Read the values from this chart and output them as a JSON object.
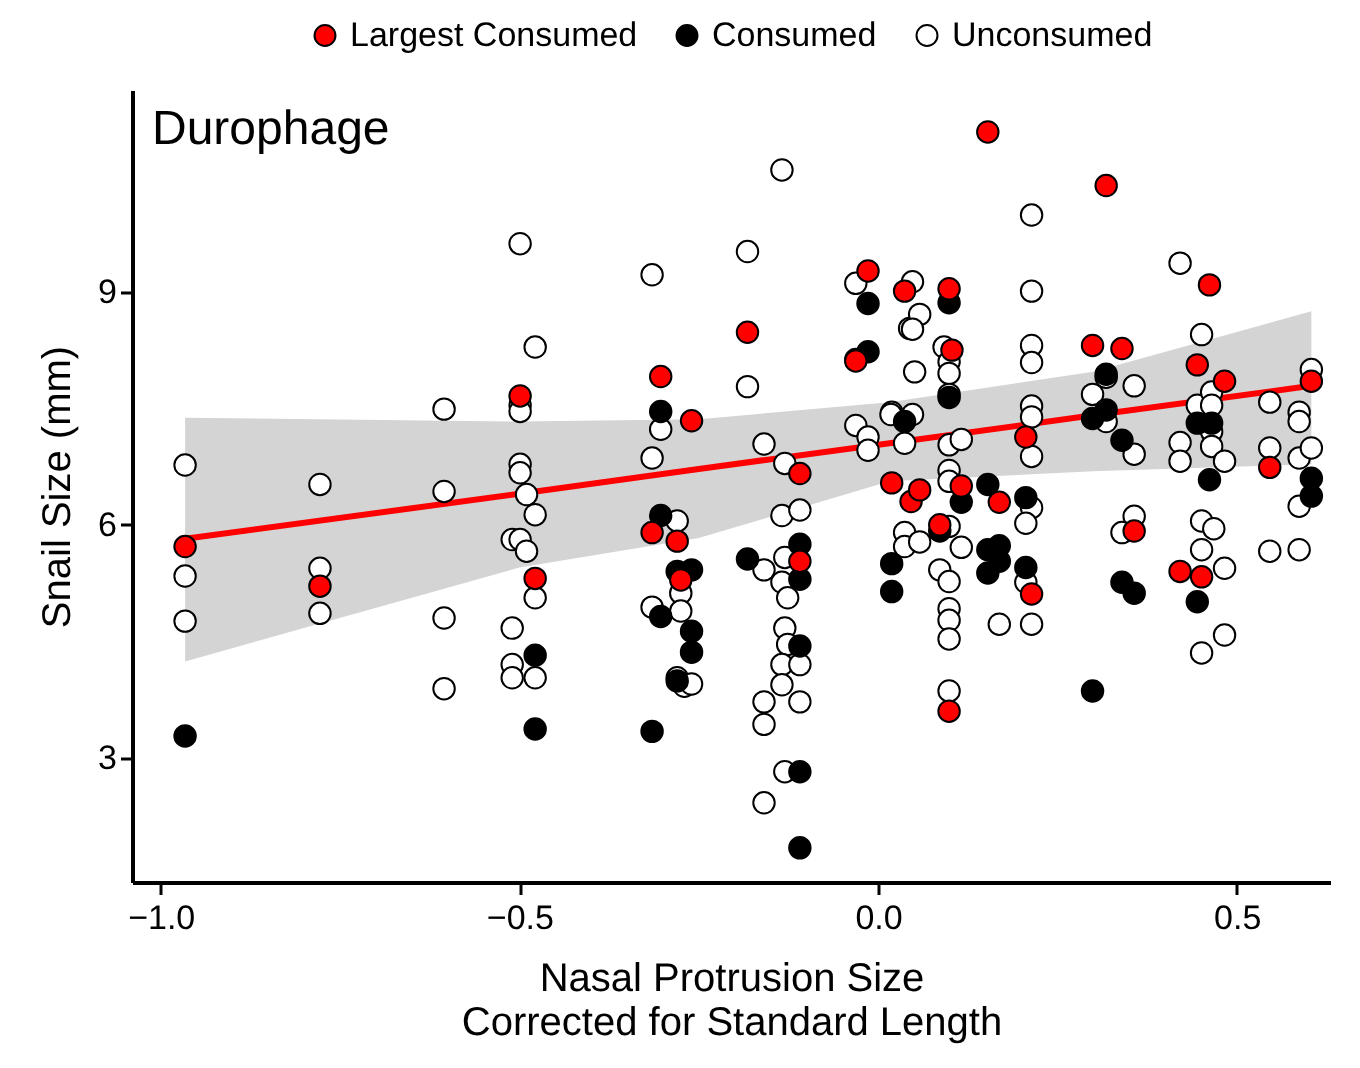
{
  "chart_data": {
    "type": "scatter",
    "title": "Durophage",
    "xlabel": "Nasal Protrusion Size\nCorrected for Standard Length",
    "ylabel": "Snail Size (mm)",
    "xlim": [
      -1.04,
      0.63
    ],
    "ylim": [
      1.4,
      11.6
    ],
    "xticks": [
      {
        "value": -1.0,
        "label": "−1.0"
      },
      {
        "value": -0.5,
        "label": "−0.5"
      },
      {
        "value": 0.0,
        "label": "0.0"
      },
      {
        "value": 0.5,
        "label": "0.5"
      }
    ],
    "yticks": [
      3,
      6,
      9
    ],
    "legend": "top",
    "marker": "circle",
    "series": [
      {
        "name": "Largest Consumed",
        "color": "#ff0000",
        "x": [
          -0.966,
          -0.778,
          -0.499,
          -0.478,
          -0.303,
          -0.26,
          -0.315,
          -0.28,
          -0.275,
          -0.182,
          -0.109,
          -0.109,
          -0.014,
          -0.031,
          0.037,
          0.019,
          0.046,
          0.153,
          0.318,
          0.462,
          0.099,
          0.103,
          0.299,
          0.34,
          0.445,
          0.483,
          0.116,
          0.206,
          0.357,
          0.058,
          0.086,
          0.169,
          0.214,
          0.421,
          0.451,
          0.546,
          0.604,
          0.099
        ],
        "values": [
          5.72,
          5.21,
          7.66,
          5.31,
          7.91,
          7.34,
          5.9,
          5.79,
          5.29,
          8.48,
          6.66,
          5.53,
          9.27,
          8.11,
          9.01,
          6.54,
          6.3,
          11.06,
          10.37,
          9.09,
          9.04,
          8.25,
          8.31,
          8.27,
          8.06,
          7.85,
          6.5,
          7.13,
          5.92,
          6.45,
          6.0,
          6.29,
          5.11,
          5.4,
          5.33,
          6.74,
          7.85,
          3.6
        ]
      },
      {
        "name": "Consumed",
        "color": "#000000",
        "x": [
          -0.966,
          -0.478,
          -0.478,
          -0.303,
          -0.303,
          -0.28,
          -0.26,
          -0.303,
          -0.26,
          -0.26,
          -0.28,
          -0.315,
          -0.182,
          -0.109,
          -0.109,
          -0.109,
          -0.109,
          -0.109,
          -0.014,
          -0.014,
          0.037,
          0.019,
          0.019,
          0.099,
          0.099,
          0.318,
          0.299,
          0.318,
          0.34,
          0.116,
          0.153,
          0.153,
          0.169,
          0.169,
          0.153,
          0.086,
          0.206,
          0.206,
          0.34,
          0.357,
          0.299,
          0.445,
          0.465,
          0.462,
          0.445,
          0.604,
          0.604
        ],
        "values": [
          3.28,
          4.32,
          3.37,
          7.46,
          6.12,
          5.4,
          5.42,
          4.82,
          4.63,
          4.36,
          3.99,
          3.34,
          5.56,
          5.75,
          5.3,
          4.44,
          2.82,
          1.84,
          8.85,
          8.23,
          7.33,
          5.5,
          5.14,
          8.86,
          7.64,
          7.94,
          7.37,
          7.48,
          7.09,
          6.29,
          6.52,
          5.68,
          5.73,
          5.53,
          5.38,
          5.92,
          6.35,
          5.45,
          5.26,
          5.12,
          3.86,
          7.31,
          7.31,
          6.58,
          5.01,
          6.6,
          6.37
        ]
      },
      {
        "name": "Unconsumed",
        "color": "#ffffff",
        "x": [
          -0.966,
          -0.966,
          -0.966,
          -0.778,
          -0.778,
          -0.778,
          -0.605,
          -0.605,
          -0.605,
          -0.605,
          -0.499,
          -0.478,
          -0.499,
          -0.499,
          -0.499,
          -0.499,
          -0.49,
          -0.478,
          -0.51,
          -0.499,
          -0.49,
          -0.478,
          -0.51,
          -0.51,
          -0.51,
          -0.478,
          -0.315,
          -0.303,
          -0.315,
          -0.28,
          -0.275,
          -0.275,
          -0.315,
          -0.28,
          -0.27,
          -0.26,
          -0.182,
          -0.182,
          -0.159,
          -0.159,
          -0.134,
          -0.13,
          -0.134,
          -0.109,
          -0.13,
          -0.134,
          -0.126,
          -0.13,
          -0.126,
          -0.134,
          -0.109,
          -0.134,
          -0.159,
          -0.109,
          -0.159,
          -0.13,
          -0.159,
          -0.031,
          0.044,
          0.051,
          -0.031,
          -0.031,
          -0.014,
          -0.014,
          0.019,
          0.037,
          0.037,
          0.037,
          0.048,
          0.058,
          0.048,
          0.214,
          0.092,
          0.099,
          0.099,
          0.214,
          0.421,
          0.214,
          0.214,
          0.318,
          0.357,
          0.451,
          0.099,
          0.018,
          0.048,
          0.099,
          0.116,
          0.099,
          0.099,
          0.214,
          0.214,
          0.214,
          0.299,
          0.318,
          0.357,
          0.357,
          0.34,
          0.058,
          0.099,
          0.116,
          0.086,
          0.099,
          0.099,
          0.099,
          0.099,
          0.099,
          0.169,
          0.214,
          0.206,
          0.206,
          0.214,
          0.445,
          0.465,
          0.465,
          0.465,
          0.465,
          0.483,
          0.421,
          0.421,
          0.451,
          0.468,
          0.451,
          0.483,
          0.483,
          0.451,
          0.546,
          0.546,
          0.546,
          0.587,
          0.587,
          0.587,
          0.587,
          0.587,
          0.604,
          0.604
        ],
        "values": [
          6.77,
          5.34,
          4.76,
          6.52,
          5.44,
          4.86,
          7.49,
          6.43,
          4.8,
          3.89,
          9.62,
          8.29,
          7.54,
          7.46,
          6.78,
          6.67,
          6.39,
          6.13,
          5.81,
          5.81,
          5.66,
          5.06,
          4.67,
          4.2,
          4.03,
          4.03,
          9.22,
          7.23,
          6.86,
          6.05,
          5.12,
          4.89,
          4.94,
          4.03,
          3.92,
          3.95,
          9.52,
          7.78,
          7.04,
          5.42,
          10.57,
          6.79,
          6.12,
          6.19,
          5.58,
          5.26,
          5.06,
          4.67,
          4.46,
          4.2,
          4.2,
          3.94,
          3.72,
          3.72,
          3.43,
          2.82,
          2.42,
          9.11,
          8.53,
          7.97,
          8.13,
          7.28,
          7.13,
          6.96,
          7.45,
          7.05,
          5.9,
          5.72,
          9.13,
          8.71,
          8.52,
          9.01,
          8.29,
          8.1,
          7.95,
          9.99,
          9.37,
          8.31,
          8.09,
          7.9,
          7.79,
          8.45,
          7.68,
          7.42,
          7.42,
          7.03,
          7.1,
          6.7,
          6.56,
          7.53,
          7.39,
          6.88,
          7.68,
          7.33,
          6.91,
          6.11,
          5.9,
          5.78,
          5.98,
          5.71,
          5.42,
          5.27,
          4.92,
          4.77,
          4.53,
          3.86,
          4.72,
          6.22,
          6.02,
          5.26,
          4.72,
          7.54,
          7.71,
          7.54,
          7.2,
          7.01,
          6.82,
          7.06,
          6.82,
          6.05,
          5.95,
          5.68,
          5.44,
          4.58,
          4.35,
          7.58,
          6.99,
          5.66,
          7.45,
          7.33,
          6.86,
          6.24,
          5.68,
          8.0,
          6.99
        ]
      },
      {
        "type": "line",
        "marker": "none",
        "color": "#ff0000",
        "x": [
          -0.966,
          -0.5,
          -0.25,
          0.016,
          0.3,
          0.604
        ],
        "values": [
          5.82,
          6.4,
          6.72,
          7.05,
          7.41,
          7.79
        ],
        "lower": [
          4.24,
          5.45,
          5.83,
          6.56,
          6.69,
          6.78
        ],
        "upper": [
          7.38,
          7.33,
          7.36,
          7.58,
          7.97,
          8.75
        ]
      }
    ]
  }
}
